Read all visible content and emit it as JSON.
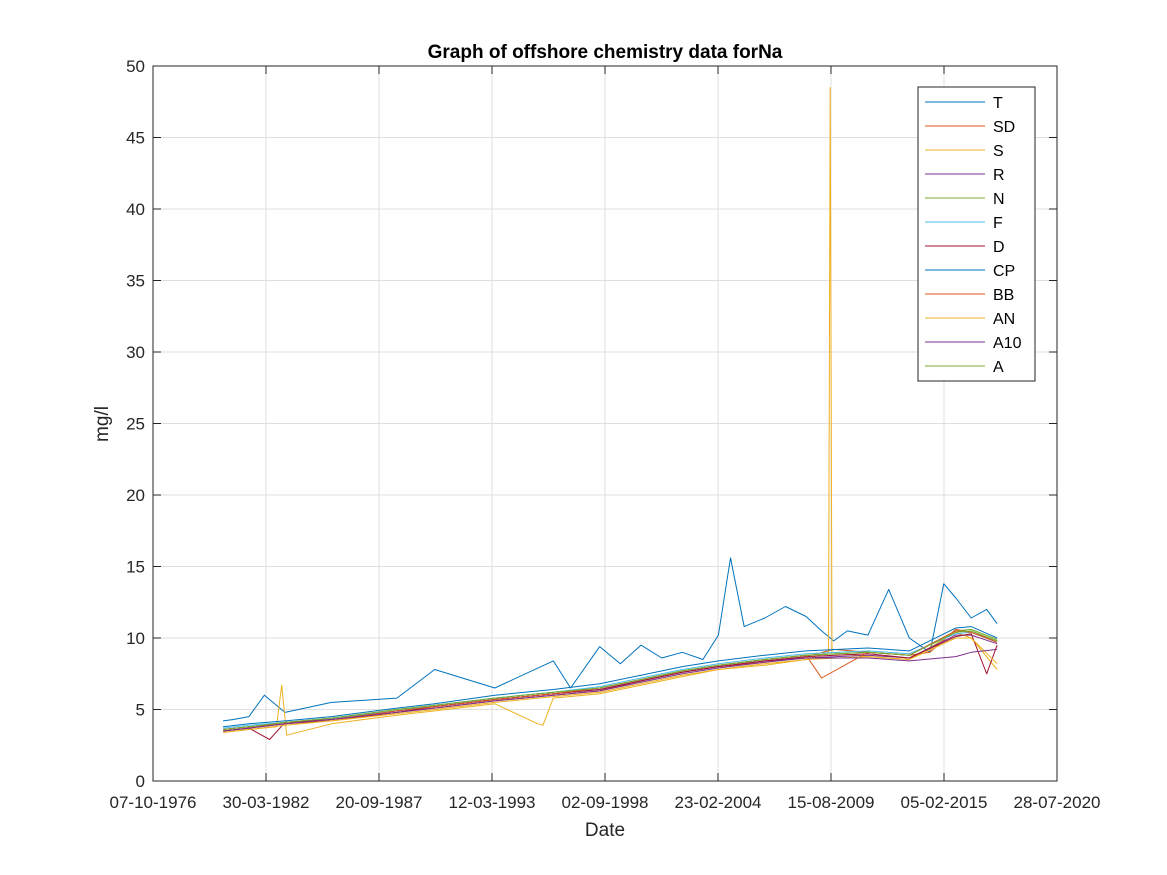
{
  "chart_data": {
    "type": "line",
    "title": "Graph of offshore chemistry data forNa",
    "xlabel": "Date",
    "ylabel": "mg/l",
    "xlim": [
      "1976-10-07",
      "2020-07-28"
    ],
    "ylim": [
      0,
      50
    ],
    "x_ticks": [
      "1976-10-07",
      "1982-03-30",
      "1987-09-20",
      "1993-03-12",
      "1998-09-02",
      "2004-02-23",
      "2009-08-15",
      "2015-02-05",
      "2020-07-28"
    ],
    "x_tick_labels": [
      "07-10-1976",
      "30-03-1982",
      "20-09-1987",
      "12-03-1993",
      "02-09-1998",
      "23-02-2004",
      "15-08-2009",
      "05-02-2015",
      "28-07-2020"
    ],
    "y_ticks": [
      0,
      5,
      10,
      15,
      20,
      25,
      30,
      35,
      40,
      45,
      50
    ],
    "y_tick_labels": [
      "0",
      "5",
      "10",
      "15",
      "20",
      "25",
      "30",
      "35",
      "40",
      "45",
      "50"
    ],
    "grid": true,
    "legend_position": "top-right",
    "series": [
      {
        "name": "T",
        "color": "#0072BD",
        "x": [
          "1980-03-01",
          "1980-09-01",
          "1981-06-01",
          "1982-03-01",
          "1983-03-01",
          "1985-06-01",
          "1988-08-01",
          "1990-06-01",
          "1993-05-01",
          "1996-03-01",
          "1997-01-01",
          "1998-06-01",
          "1999-06-01",
          "2000-06-01",
          "2001-06-01",
          "2002-06-01",
          "2003-06-01",
          "2004-03-01",
          "2004-10-01",
          "2005-06-01",
          "2006-06-01",
          "2007-06-01",
          "2008-06-01",
          "2009-03-01",
          "2009-10-01",
          "2010-06-01",
          "2011-06-01",
          "2012-06-01",
          "2013-06-01",
          "2014-06-01",
          "2015-02-01",
          "2015-09-01",
          "2016-06-01",
          "2017-03-01",
          "2017-09-01"
        ],
        "y": [
          4.2,
          4.3,
          4.5,
          6.0,
          4.8,
          5.5,
          5.8,
          7.8,
          6.5,
          8.4,
          6.5,
          9.4,
          8.2,
          9.5,
          8.6,
          9.0,
          8.5,
          10.2,
          15.6,
          10.8,
          11.4,
          12.2,
          11.5,
          10.5,
          9.8,
          10.5,
          10.2,
          13.4,
          10.0,
          9.0,
          13.8,
          12.8,
          11.4,
          12.0,
          11.0
        ]
      },
      {
        "name": "SD",
        "color": "#D95319",
        "x": [
          "1980-03-01",
          "1981-06-01",
          "1983-03-01",
          "1985-06-01",
          "1988-08-01",
          "1990-06-01",
          "1993-05-01",
          "1996-03-01",
          "1998-06-01",
          "2000-06-01",
          "2002-06-01",
          "2004-03-01",
          "2006-06-01",
          "2008-06-01",
          "2009-10-01",
          "2011-06-01",
          "2013-06-01",
          "2014-06-01",
          "2015-09-01",
          "2016-06-01",
          "2017-09-01"
        ],
        "y": [
          3.6,
          3.8,
          4.0,
          4.2,
          4.8,
          5.1,
          5.6,
          6.0,
          6.3,
          7.0,
          7.6,
          8.0,
          8.3,
          8.7,
          9.2,
          9.0,
          8.8,
          9.0,
          10.6,
          10.4,
          9.8
        ]
      },
      {
        "name": "S",
        "color": "#EDB120",
        "x": [
          "1980-03-01",
          "1981-06-01",
          "1982-10-01",
          "1983-01-01",
          "1983-04-01",
          "1985-06-01",
          "1988-08-01",
          "1990-06-01",
          "1993-05-01",
          "1995-06-01",
          "1995-09-01",
          "1996-03-01",
          "1998-06-01",
          "2000-06-01",
          "2002-06-01",
          "2004-03-01",
          "2006-06-01",
          "2008-06-01",
          "2009-07-01",
          "2009-08-01",
          "2009-09-01",
          "2011-06-01",
          "2013-06-01",
          "2015-09-01",
          "2016-06-01",
          "2017-09-01"
        ],
        "y": [
          3.4,
          3.6,
          3.8,
          6.7,
          3.2,
          4.0,
          4.6,
          4.9,
          5.4,
          4.0,
          3.9,
          5.8,
          6.1,
          6.7,
          7.3,
          7.8,
          8.1,
          8.5,
          9.0,
          48.5,
          9.0,
          8.7,
          8.5,
          10.4,
          10.0,
          7.8
        ]
      },
      {
        "name": "R",
        "color": "#7E2F8E",
        "x": [
          "1980-03-01",
          "1981-06-01",
          "1983-03-01",
          "1985-06-01",
          "1988-08-01",
          "1990-06-01",
          "1993-05-01",
          "1996-03-01",
          "1998-06-01",
          "2000-06-01",
          "2002-06-01",
          "2004-03-01",
          "2006-06-01",
          "2008-06-01",
          "2011-06-01",
          "2013-06-01",
          "2015-09-01",
          "2016-06-01",
          "2017-09-01"
        ],
        "y": [
          3.5,
          3.7,
          4.0,
          4.3,
          4.9,
          5.2,
          5.7,
          6.1,
          6.4,
          7.0,
          7.6,
          8.0,
          8.4,
          8.6,
          8.8,
          8.6,
          10.2,
          10.2,
          9.6
        ]
      },
      {
        "name": "N",
        "color": "#77AC30",
        "x": [
          "1980-03-01",
          "1981-06-01",
          "1983-03-01",
          "1985-06-01",
          "1988-08-01",
          "1990-06-01",
          "1993-05-01",
          "1996-03-01",
          "1998-06-01",
          "2000-06-01",
          "2002-06-01",
          "2004-03-01",
          "2006-06-01",
          "2008-06-01",
          "2011-06-01",
          "2013-06-01",
          "2015-09-01",
          "2016-06-01",
          "2017-09-01"
        ],
        "y": [
          3.6,
          3.8,
          4.1,
          4.4,
          5.0,
          5.3,
          5.8,
          6.2,
          6.5,
          7.1,
          7.7,
          8.1,
          8.5,
          8.8,
          9.0,
          8.8,
          10.5,
          10.6,
          9.9
        ]
      },
      {
        "name": "F",
        "color": "#4DBEEE",
        "x": [
          "1980-03-01",
          "1981-06-01",
          "1983-03-01",
          "1985-06-01",
          "1988-08-01",
          "1990-06-01",
          "1993-05-01",
          "1996-03-01",
          "1998-06-01",
          "2000-06-01",
          "2002-06-01",
          "2004-03-01",
          "2006-06-01",
          "2008-06-01",
          "2011-06-01",
          "2013-06-01",
          "2015-09-01",
          "2016-06-01",
          "2017-09-01"
        ],
        "y": [
          3.7,
          3.9,
          4.1,
          4.4,
          4.9,
          5.3,
          5.8,
          6.2,
          6.6,
          7.2,
          7.8,
          8.2,
          8.6,
          8.9,
          9.1,
          8.9,
          10.3,
          10.4,
          9.7
        ]
      },
      {
        "name": "D",
        "color": "#A2142F",
        "x": [
          "1980-03-01",
          "1981-06-01",
          "1982-06-01",
          "1983-03-01",
          "1985-06-01",
          "1988-08-01",
          "1990-06-01",
          "1993-05-01",
          "1996-03-01",
          "1998-06-01",
          "2000-06-01",
          "2002-06-01",
          "2004-03-01",
          "2006-06-01",
          "2008-06-01",
          "2011-06-01",
          "2013-06-01",
          "2015-09-01",
          "2016-06-01",
          "2017-03-01",
          "2017-09-01"
        ],
        "y": [
          3.5,
          3.7,
          2.9,
          4.1,
          4.3,
          4.8,
          5.2,
          5.7,
          6.1,
          6.4,
          7.0,
          7.6,
          8.0,
          8.4,
          8.7,
          8.9,
          8.6,
          10.1,
          10.3,
          7.5,
          9.5
        ]
      },
      {
        "name": "CP",
        "color": "#0072BD",
        "x": [
          "1980-03-01",
          "1981-06-01",
          "1983-03-01",
          "1985-06-01",
          "1988-08-01",
          "1990-06-01",
          "1993-05-01",
          "1996-03-01",
          "1998-06-01",
          "2000-06-01",
          "2002-06-01",
          "2004-03-01",
          "2006-06-01",
          "2008-06-01",
          "2011-06-01",
          "2013-06-01",
          "2015-09-01",
          "2016-06-01",
          "2017-09-01"
        ],
        "y": [
          3.8,
          4.0,
          4.2,
          4.5,
          5.1,
          5.4,
          6.0,
          6.4,
          6.8,
          7.4,
          8.0,
          8.4,
          8.8,
          9.1,
          9.3,
          9.1,
          10.7,
          10.8,
          10.0
        ]
      },
      {
        "name": "BB",
        "color": "#D95319",
        "x": [
          "1980-03-01",
          "1981-06-01",
          "1983-03-01",
          "1985-06-01",
          "1988-08-01",
          "1990-06-01",
          "1993-05-01",
          "1996-03-01",
          "1998-06-01",
          "2000-06-01",
          "2002-06-01",
          "2004-03-01",
          "2006-06-01",
          "2008-06-01",
          "2009-03-01",
          "2011-06-01",
          "2013-06-01",
          "2015-09-01",
          "2016-06-01",
          "2017-09-01"
        ],
        "y": [
          3.6,
          3.8,
          4.0,
          4.3,
          4.9,
          5.2,
          5.7,
          6.1,
          6.5,
          7.1,
          7.7,
          8.1,
          8.5,
          8.8,
          7.2,
          9.0,
          8.8,
          10.5,
          10.4,
          9.7
        ]
      },
      {
        "name": "AN",
        "color": "#EDB120",
        "x": [
          "1980-03-01",
          "1981-06-01",
          "1983-03-01",
          "1985-06-01",
          "1988-08-01",
          "1990-06-01",
          "1993-05-01",
          "1996-03-01",
          "1998-06-01",
          "2000-06-01",
          "2002-06-01",
          "2004-03-01",
          "2006-06-01",
          "2008-06-01",
          "2011-06-01",
          "2013-06-01",
          "2015-09-01",
          "2016-06-01",
          "2017-09-01"
        ],
        "y": [
          3.4,
          3.6,
          3.9,
          4.2,
          4.7,
          5.0,
          5.5,
          5.9,
          6.2,
          6.8,
          7.4,
          7.8,
          8.2,
          8.5,
          8.7,
          8.5,
          10.0,
          10.0,
          8.2
        ]
      },
      {
        "name": "A10",
        "color": "#7E2F8E",
        "x": [
          "1980-03-01",
          "1981-06-01",
          "1983-03-01",
          "1985-06-01",
          "1988-08-01",
          "1990-06-01",
          "1993-05-01",
          "1996-03-01",
          "1998-06-01",
          "2000-06-01",
          "2002-06-01",
          "2004-03-01",
          "2006-06-01",
          "2008-06-01",
          "2011-06-01",
          "2013-06-01",
          "2015-09-01",
          "2016-06-01",
          "2017-09-01"
        ],
        "y": [
          3.5,
          3.7,
          4.0,
          4.3,
          4.8,
          5.1,
          5.6,
          6.0,
          6.3,
          6.9,
          7.5,
          7.9,
          8.3,
          8.6,
          8.6,
          8.4,
          8.7,
          9.0,
          9.2
        ]
      },
      {
        "name": "A",
        "color": "#77AC30",
        "x": [
          "1980-03-01",
          "1981-06-01",
          "1983-03-01",
          "1985-06-01",
          "1988-08-01",
          "1990-06-01",
          "1993-05-01",
          "1996-03-01",
          "1998-06-01",
          "2000-06-01",
          "2002-06-01",
          "2004-03-01",
          "2006-06-01",
          "2008-06-01",
          "2011-06-01",
          "2013-06-01",
          "2015-09-01",
          "2016-06-01",
          "2017-09-01"
        ],
        "y": [
          3.6,
          3.8,
          4.1,
          4.4,
          5.0,
          5.3,
          5.8,
          6.2,
          6.5,
          7.1,
          7.7,
          8.1,
          8.5,
          8.8,
          9.0,
          8.8,
          10.4,
          10.5,
          9.8
        ]
      }
    ]
  }
}
